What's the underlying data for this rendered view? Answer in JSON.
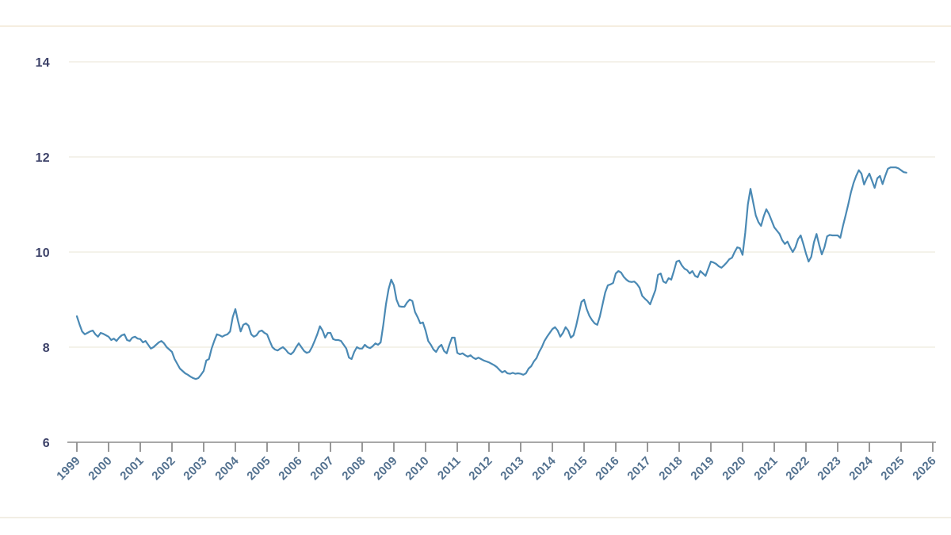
{
  "page": {
    "background": "#ffffff",
    "top_rule_color": "#f2e8d6",
    "bottom_rule_color": "#eee8db"
  },
  "chart_data": {
    "type": "line",
    "title": "",
    "xlabel": "",
    "ylabel": "",
    "grid": "horizontal-only",
    "legend": "none",
    "x_ticks": [
      "1999",
      "2000",
      "2001",
      "2002",
      "2003",
      "2004",
      "2005",
      "2006",
      "2007",
      "2008",
      "2009",
      "2010",
      "2011",
      "2012",
      "2013",
      "2014",
      "2015",
      "2016",
      "2017",
      "2018",
      "2019",
      "2020",
      "2021",
      "2022",
      "2023",
      "2024",
      "2025",
      "2026"
    ],
    "y_ticks": [
      6,
      8,
      10,
      12,
      14
    ],
    "ylim": [
      6,
      14.35
    ],
    "xlim": [
      "1999-01",
      "2026-07"
    ],
    "series": [
      {
        "name": "monthly-value",
        "color": "#4a89b4",
        "start_year": 1999,
        "start_month": 1,
        "frequency": "monthly",
        "values": [
          8.65,
          8.48,
          8.33,
          8.27,
          8.3,
          8.33,
          8.35,
          8.27,
          8.22,
          8.3,
          8.28,
          8.25,
          8.22,
          8.15,
          8.18,
          8.13,
          8.2,
          8.25,
          8.27,
          8.15,
          8.13,
          8.2,
          8.22,
          8.18,
          8.17,
          8.1,
          8.13,
          8.05,
          7.97,
          8.0,
          8.05,
          8.1,
          8.13,
          8.08,
          8.0,
          7.95,
          7.9,
          7.75,
          7.65,
          7.55,
          7.5,
          7.45,
          7.42,
          7.38,
          7.35,
          7.33,
          7.35,
          7.42,
          7.5,
          7.72,
          7.75,
          7.97,
          8.13,
          8.27,
          8.25,
          8.22,
          8.25,
          8.27,
          8.33,
          8.63,
          8.8,
          8.55,
          8.33,
          8.47,
          8.5,
          8.45,
          8.27,
          8.22,
          8.25,
          8.33,
          8.35,
          8.3,
          8.27,
          8.13,
          8.0,
          7.95,
          7.93,
          7.97,
          8.0,
          7.95,
          7.88,
          7.85,
          7.9,
          8.0,
          8.08,
          8.0,
          7.92,
          7.88,
          7.9,
          8.0,
          8.13,
          8.27,
          8.44,
          8.35,
          8.2,
          8.3,
          8.3,
          8.17,
          8.15,
          8.15,
          8.13,
          8.05,
          7.97,
          7.78,
          7.75,
          7.9,
          8.0,
          7.97,
          7.97,
          8.05,
          8.0,
          7.98,
          8.02,
          8.08,
          8.05,
          8.1,
          8.47,
          8.9,
          9.22,
          9.42,
          9.3,
          9.0,
          8.86,
          8.85,
          8.85,
          8.94,
          9.0,
          8.97,
          8.74,
          8.63,
          8.5,
          8.52,
          8.35,
          8.13,
          8.05,
          7.95,
          7.9,
          8.0,
          8.05,
          7.92,
          7.87,
          8.05,
          8.2,
          8.2,
          7.88,
          7.85,
          7.87,
          7.83,
          7.8,
          7.83,
          7.78,
          7.75,
          7.78,
          7.75,
          7.72,
          7.7,
          7.68,
          7.65,
          7.62,
          7.58,
          7.52,
          7.47,
          7.5,
          7.45,
          7.44,
          7.46,
          7.44,
          7.45,
          7.44,
          7.42,
          7.45,
          7.55,
          7.6,
          7.7,
          7.77,
          7.9,
          8.0,
          8.13,
          8.22,
          8.3,
          8.38,
          8.42,
          8.35,
          8.22,
          8.3,
          8.42,
          8.35,
          8.2,
          8.25,
          8.45,
          8.7,
          8.95,
          9.0,
          8.8,
          8.66,
          8.57,
          8.5,
          8.47,
          8.65,
          8.9,
          9.15,
          9.3,
          9.32,
          9.35,
          9.55,
          9.6,
          9.57,
          9.48,
          9.42,
          9.38,
          9.37,
          9.38,
          9.33,
          9.25,
          9.08,
          9.02,
          8.97,
          8.9,
          9.05,
          9.2,
          9.52,
          9.55,
          9.38,
          9.35,
          9.45,
          9.42,
          9.6,
          9.8,
          9.82,
          9.72,
          9.65,
          9.62,
          9.55,
          9.6,
          9.5,
          9.47,
          9.6,
          9.55,
          9.5,
          9.65,
          9.8,
          9.78,
          9.75,
          9.7,
          9.67,
          9.72,
          9.78,
          9.85,
          9.88,
          10.0,
          10.1,
          10.08,
          9.94,
          10.4,
          11.0,
          11.33,
          11.05,
          10.77,
          10.63,
          10.55,
          10.75,
          10.9,
          10.8,
          10.66,
          10.52,
          10.45,
          10.38,
          10.25,
          10.17,
          10.22,
          10.1,
          10.0,
          10.1,
          10.27,
          10.35,
          10.17,
          9.97,
          9.8,
          9.9,
          10.2,
          10.38,
          10.15,
          9.95,
          10.1,
          10.33,
          10.36,
          10.35,
          10.35,
          10.35,
          10.3,
          10.55,
          10.77,
          11.0,
          11.25,
          11.45,
          11.6,
          11.72,
          11.65,
          11.42,
          11.55,
          11.65,
          11.5,
          11.35,
          11.55,
          11.6,
          11.43,
          11.6,
          11.75,
          11.78,
          11.78,
          11.78,
          11.76,
          11.72,
          11.68,
          11.67
        ]
      }
    ],
    "colors": {
      "grid": "#f1ede4",
      "axis": "#8c8c8c",
      "y_label": "#3d4269",
      "x_label": "#53718f"
    }
  }
}
